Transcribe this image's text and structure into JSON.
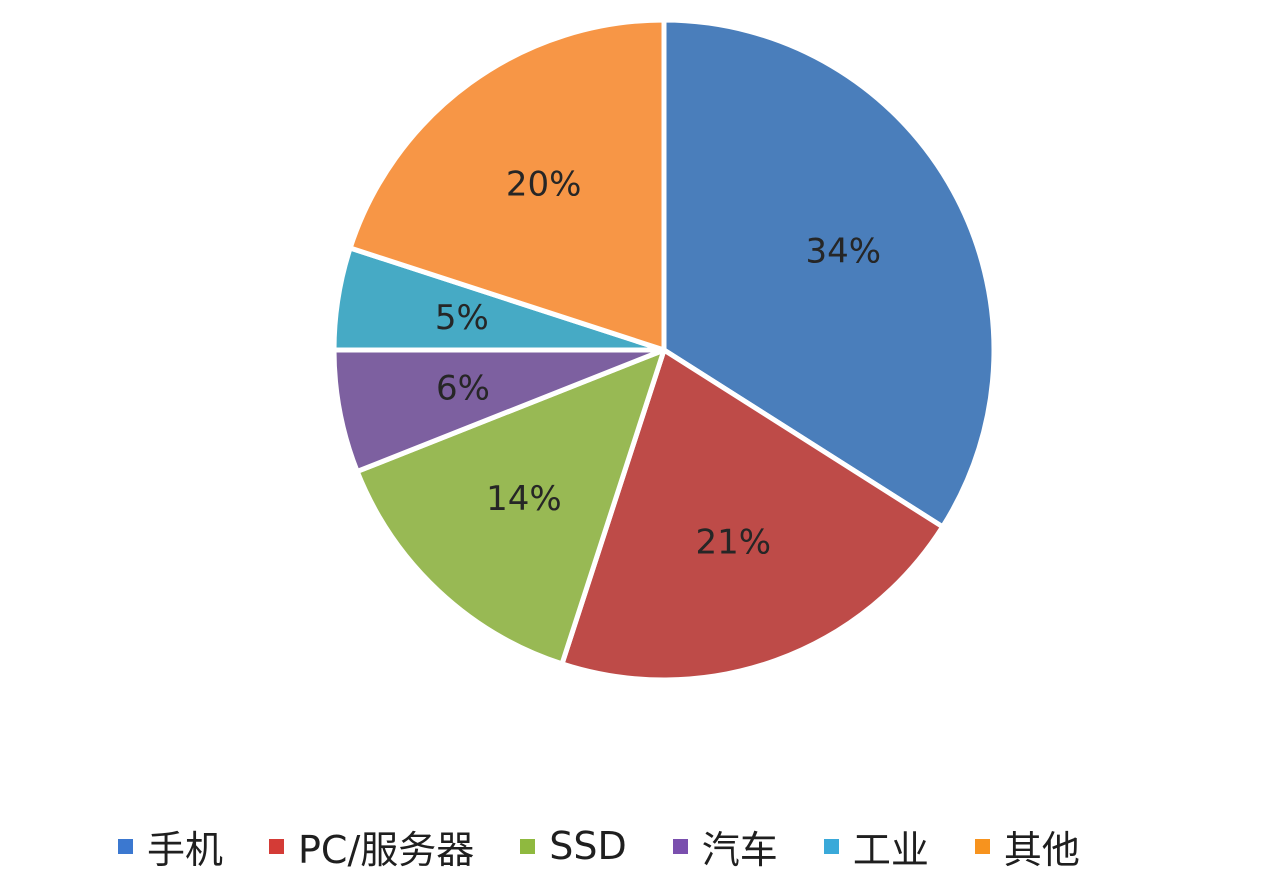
{
  "chart_data": {
    "type": "pie",
    "title": "",
    "slices": [
      {
        "name": "手机",
        "value": 34,
        "label": "34%",
        "color": "#4a7ebb"
      },
      {
        "name": "PC/服务器",
        "value": 21,
        "label": "21%",
        "color": "#be4b48"
      },
      {
        "name": "SSD",
        "value": 14,
        "label": "14%",
        "color": "#98b954"
      },
      {
        "name": "汽车",
        "value": 6,
        "label": "6%",
        "color": "#7d60a0"
      },
      {
        "name": "工业",
        "value": 5,
        "label": "5%",
        "color": "#46aac5"
      },
      {
        "name": "其他",
        "value": 20,
        "label": "20%",
        "color": "#f79646"
      }
    ],
    "start_angle": "12 o'clock",
    "direction": "clockwise",
    "legend_position": "bottom"
  },
  "legend": {
    "items": [
      {
        "label": "手机",
        "color": "#3b78d0"
      },
      {
        "label": "PC/服务器",
        "color": "#d43b36"
      },
      {
        "label": "SSD",
        "color": "#8fb93f"
      },
      {
        "label": "汽车",
        "color": "#7a4fae"
      },
      {
        "label": "工业",
        "color": "#3aa9d9"
      },
      {
        "label": "其他",
        "color": "#f7931e"
      }
    ]
  }
}
